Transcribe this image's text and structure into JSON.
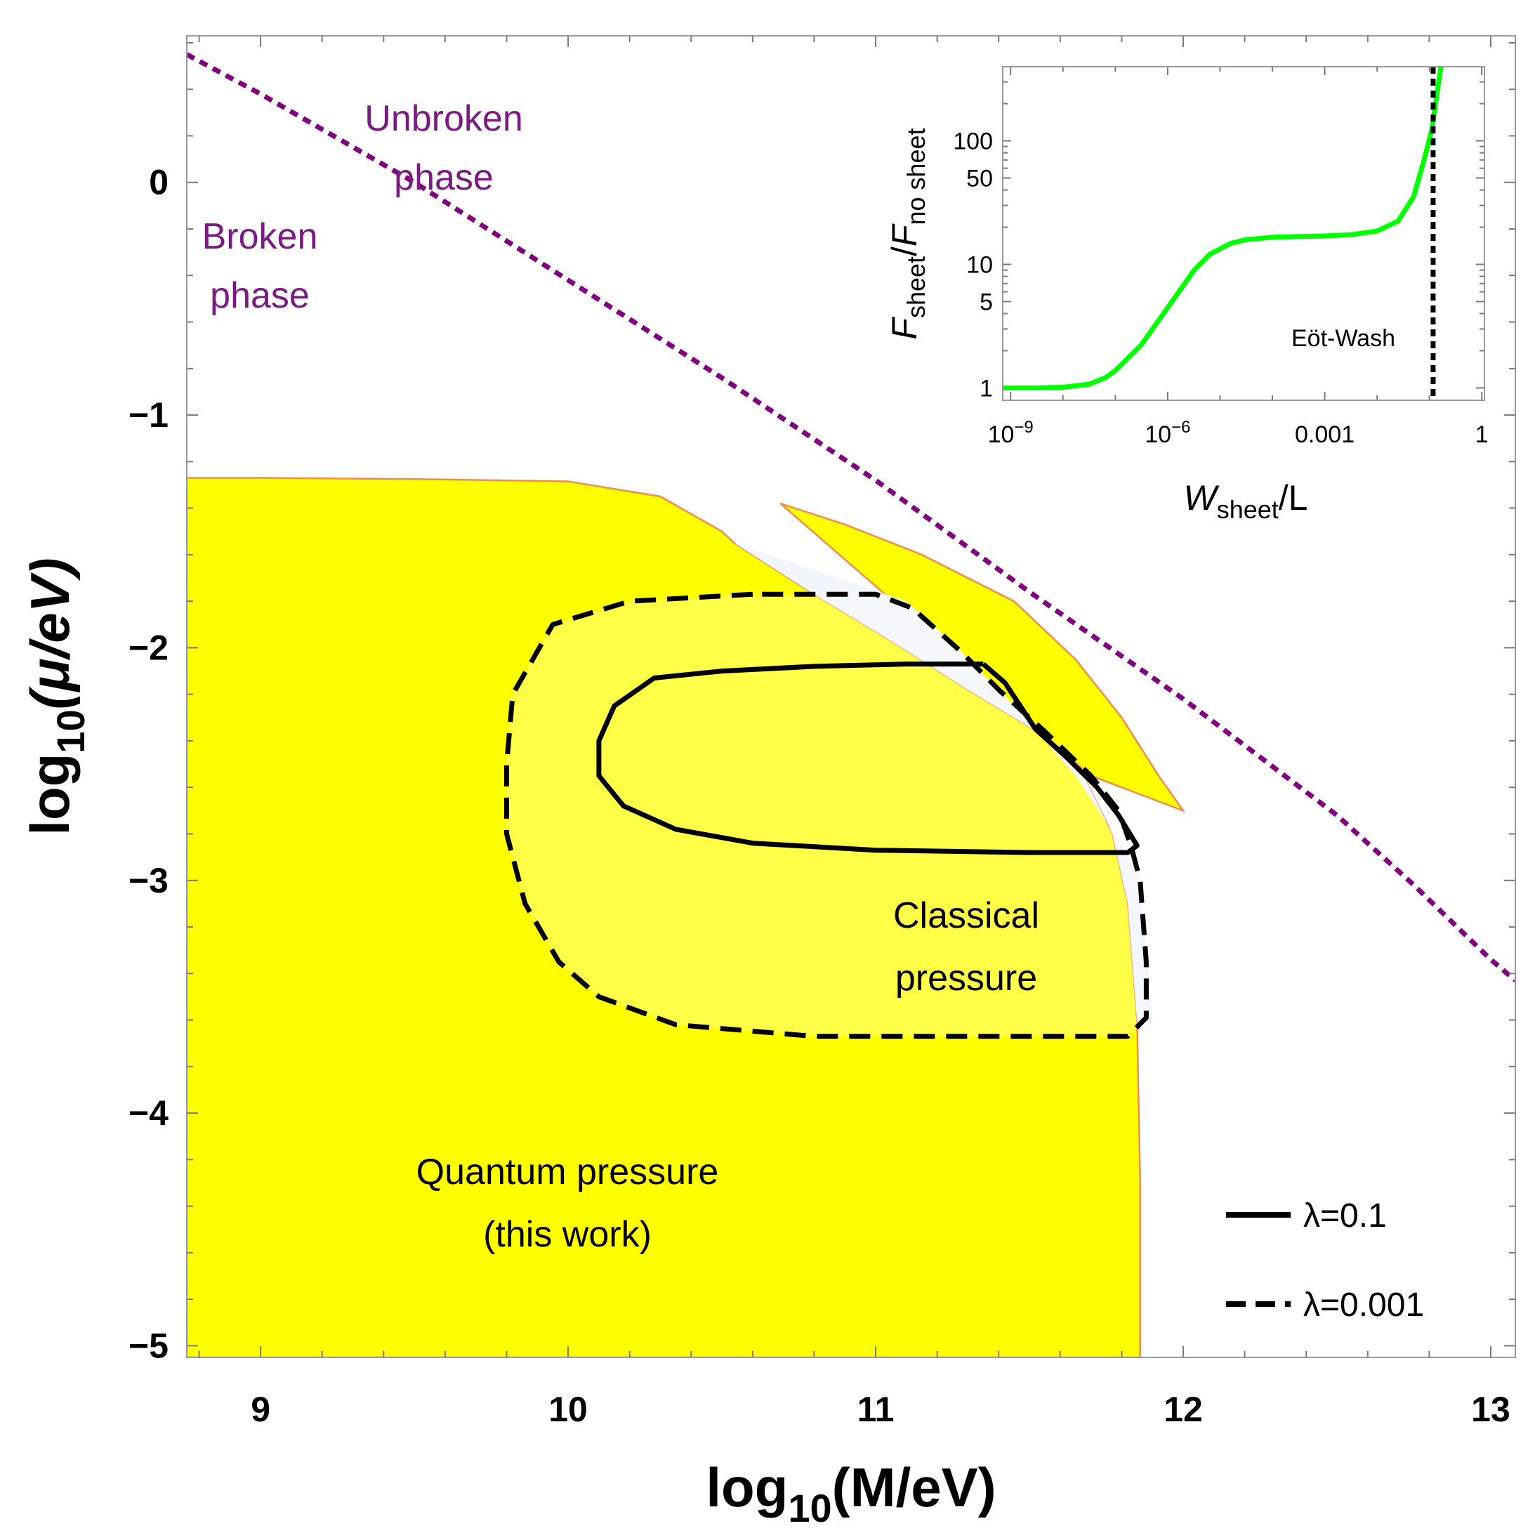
{
  "chart_data": [
    {
      "type": "line",
      "panel": "main",
      "xlabel": "log10(M/eV)",
      "xlabel_parts": {
        "pre": "log",
        "sub": "10",
        "post": "(M/eV)"
      },
      "ylabel": "log10(μ/eV)",
      "ylabel_parts": {
        "pre": "log",
        "sub": "10",
        "post": "(μ/eV)"
      },
      "xlim": [
        8.76,
        13.08
      ],
      "ylim": [
        -5.05,
        0.63
      ],
      "xticks": [
        {
          "v": 9,
          "label": "9"
        },
        {
          "v": 10,
          "label": "10"
        },
        {
          "v": 11,
          "label": "11"
        },
        {
          "v": 12,
          "label": "12"
        },
        {
          "v": 13,
          "label": "13"
        }
      ],
      "yticks": [
        {
          "v": 0,
          "label": "0"
        },
        {
          "v": -1,
          "label": "−1"
        },
        {
          "v": -2,
          "label": "−2"
        },
        {
          "v": -3,
          "label": "−3"
        },
        {
          "v": -4,
          "label": "−4"
        },
        {
          "v": -5,
          "label": "−5"
        }
      ],
      "regions": [
        {
          "name": "Quantum pressure (this work)",
          "color": "#ffff00",
          "edge_color": "#f08c50",
          "points": [
            [
              8.76,
              -1.27
            ],
            [
              9.0,
              -1.27
            ],
            [
              9.5,
              -1.275
            ],
            [
              10.0,
              -1.285
            ],
            [
              10.3,
              -1.35
            ],
            [
              10.5,
              -1.5
            ],
            [
              10.54,
              -1.55
            ],
            [
              10.8,
              -1.77
            ],
            [
              11.05,
              -1.97
            ],
            [
              11.3,
              -2.18
            ],
            [
              11.55,
              -2.38
            ],
            [
              11.68,
              -2.56
            ],
            [
              11.77,
              -2.8
            ],
            [
              11.82,
              -3.1
            ],
            [
              11.85,
              -3.6
            ],
            [
              11.86,
              -4.3
            ],
            [
              11.86,
              -5.05
            ],
            [
              8.76,
              -5.05
            ]
          ]
        },
        {
          "name": "Classical pressure",
          "color": "#ffff00",
          "edge_color": "#f08c50",
          "points": [
            [
              10.69,
              -1.38
            ],
            [
              10.9,
              -1.47
            ],
            [
              11.15,
              -1.6
            ],
            [
              11.45,
              -1.8
            ],
            [
              11.65,
              -2.05
            ],
            [
              11.8,
              -2.3
            ],
            [
              11.92,
              -2.55
            ],
            [
              12.0,
              -2.7
            ],
            [
              11.7,
              -2.55
            ],
            [
              11.4,
              -2.2
            ],
            [
              11.1,
              -1.85
            ],
            [
              10.69,
              -1.38
            ]
          ]
        },
        {
          "name": "Unbroken-phase wedge",
          "color": "#f0f6fc",
          "points": [
            [
              10.54,
              -1.55
            ],
            [
              10.8,
              -1.77
            ],
            [
              11.05,
              -1.97
            ],
            [
              11.3,
              -2.18
            ],
            [
              11.55,
              -2.38
            ],
            [
              11.68,
              -2.56
            ],
            [
              11.77,
              -2.8
            ],
            [
              11.82,
              -3.1
            ],
            [
              11.85,
              -3.6
            ],
            [
              11.9,
              -3.6
            ],
            [
              11.86,
              -3.0
            ],
            [
              11.8,
              -2.85
            ],
            [
              11.65,
              -2.55
            ],
            [
              11.45,
              -2.25
            ],
            [
              11.25,
              -1.98
            ],
            [
              11.1,
              -1.8
            ],
            [
              10.54,
              -1.55
            ]
          ]
        }
      ],
      "series": [
        {
          "name": "phase boundary",
          "color": "#800080",
          "style": "dotted",
          "points": [
            [
              8.76,
              0.55
            ],
            [
              9.0,
              0.38
            ],
            [
              9.5,
              0.0
            ],
            [
              10.0,
              -0.42
            ],
            [
              10.5,
              -0.84
            ],
            [
              11.0,
              -1.28
            ],
            [
              11.5,
              -1.76
            ],
            [
              12.0,
              -2.22
            ],
            [
              12.5,
              -2.72
            ],
            [
              12.75,
              -3.02
            ],
            [
              13.0,
              -3.34
            ],
            [
              13.08,
              -3.43
            ]
          ]
        },
        {
          "name": "λ=0.1",
          "color": "#000000",
          "style": "solid",
          "points": [
            [
              11.35,
              -2.07
            ],
            [
              11.1,
              -2.07
            ],
            [
              10.8,
              -2.08
            ],
            [
              10.5,
              -2.1
            ],
            [
              10.28,
              -2.13
            ],
            [
              10.15,
              -2.25
            ],
            [
              10.1,
              -2.4
            ],
            [
              10.1,
              -2.55
            ],
            [
              10.18,
              -2.68
            ],
            [
              10.35,
              -2.78
            ],
            [
              10.6,
              -2.84
            ],
            [
              11.0,
              -2.87
            ],
            [
              11.5,
              -2.88
            ],
            [
              11.82,
              -2.88
            ],
            [
              11.85,
              -2.85
            ],
            [
              11.79,
              -2.72
            ],
            [
              11.72,
              -2.6
            ],
            [
              11.62,
              -2.47
            ],
            [
              11.52,
              -2.35
            ],
            [
              11.42,
              -2.15
            ],
            [
              11.35,
              -2.07
            ]
          ]
        },
        {
          "name": "λ=0.001",
          "color": "#000000",
          "style": "dashed",
          "points": [
            [
              10.6,
              -1.77
            ],
            [
              10.2,
              -1.8
            ],
            [
              9.95,
              -1.9
            ],
            [
              9.82,
              -2.2
            ],
            [
              9.8,
              -2.5
            ],
            [
              9.8,
              -2.8
            ],
            [
              9.86,
              -3.1
            ],
            [
              9.97,
              -3.35
            ],
            [
              10.1,
              -3.5
            ],
            [
              10.35,
              -3.62
            ],
            [
              10.8,
              -3.67
            ],
            [
              11.3,
              -3.67
            ],
            [
              11.82,
              -3.67
            ],
            [
              11.88,
              -3.59
            ],
            [
              11.88,
              -3.35
            ],
            [
              11.86,
              -3.0
            ],
            [
              11.83,
              -2.85
            ],
            [
              11.79,
              -2.7
            ],
            [
              11.7,
              -2.55
            ],
            [
              11.55,
              -2.36
            ],
            [
              11.4,
              -2.18
            ],
            [
              11.28,
              -2.02
            ],
            [
              11.12,
              -1.83
            ],
            [
              11.0,
              -1.77
            ],
            [
              10.6,
              -1.77
            ]
          ]
        }
      ],
      "annotations": {
        "unbroken": [
          "Unbroken",
          "phase"
        ],
        "broken": [
          "Broken",
          "phase"
        ],
        "classical": [
          "Classical",
          "pressure"
        ],
        "quantum": [
          "Quantum pressure",
          "(this work)"
        ]
      },
      "legend": [
        {
          "label": "λ=0.1",
          "style": "solid"
        },
        {
          "label": "λ=0.001",
          "style": "dashed"
        }
      ],
      "legend_position": "bottom-right"
    },
    {
      "type": "line",
      "panel": "inset",
      "xscale": "log",
      "yscale": "log",
      "xlim_log10": [
        -9.15,
        0.05
      ],
      "ylim_log10": [
        -0.1,
        2.6
      ],
      "xlabel": "Wsheet/L",
      "xlabel_parts": {
        "main": "W",
        "sub": "sheet",
        "post": "/L"
      },
      "ylabel": "Fsheet/Fno sheet",
      "ylabel_parts": {
        "f1": "F",
        "sub1": "sheet",
        "slash": "/",
        "f2": "F",
        "sub2": "no sheet"
      },
      "xticks": [
        {
          "e": -9,
          "base": "10",
          "exp": "−9",
          "label": ""
        },
        {
          "e": -6,
          "base": "10",
          "exp": "−6",
          "label": ""
        },
        {
          "e": -3,
          "label": "0.001"
        },
        {
          "e": 0,
          "label": "1"
        }
      ],
      "yticks": [
        {
          "v": 1,
          "label": "1"
        },
        {
          "v": 5,
          "label": "5"
        },
        {
          "v": 10,
          "label": "10"
        },
        {
          "v": 50,
          "label": "50"
        },
        {
          "v": 100,
          "label": "100"
        }
      ],
      "series": [
        {
          "name": "F ratio",
          "color": "#00ff00",
          "log10_points": [
            [
              -9.15,
              0.0
            ],
            [
              -8.5,
              0.0
            ],
            [
              -8.0,
              0.005
            ],
            [
              -7.5,
              0.03
            ],
            [
              -7.2,
              0.08
            ],
            [
              -7.0,
              0.14
            ],
            [
              -6.5,
              0.35
            ],
            [
              -6.0,
              0.65
            ],
            [
              -5.5,
              0.95
            ],
            [
              -5.2,
              1.08
            ],
            [
              -4.8,
              1.17
            ],
            [
              -4.5,
              1.2
            ],
            [
              -4.0,
              1.22
            ],
            [
              -3.5,
              1.225
            ],
            [
              -3.0,
              1.23
            ],
            [
              -2.5,
              1.24
            ],
            [
              -2.0,
              1.27
            ],
            [
              -1.6,
              1.35
            ],
            [
              -1.3,
              1.55
            ],
            [
              -1.1,
              1.85
            ],
            [
              -0.95,
              2.1
            ],
            [
              -0.85,
              2.4
            ],
            [
              -0.78,
              2.6
            ]
          ]
        }
      ],
      "vline": {
        "name": "Eöt-Wash",
        "log10_x": -0.93,
        "color": "#000000",
        "style": "dotted"
      },
      "annotation": "Eöt-Wash"
    }
  ]
}
